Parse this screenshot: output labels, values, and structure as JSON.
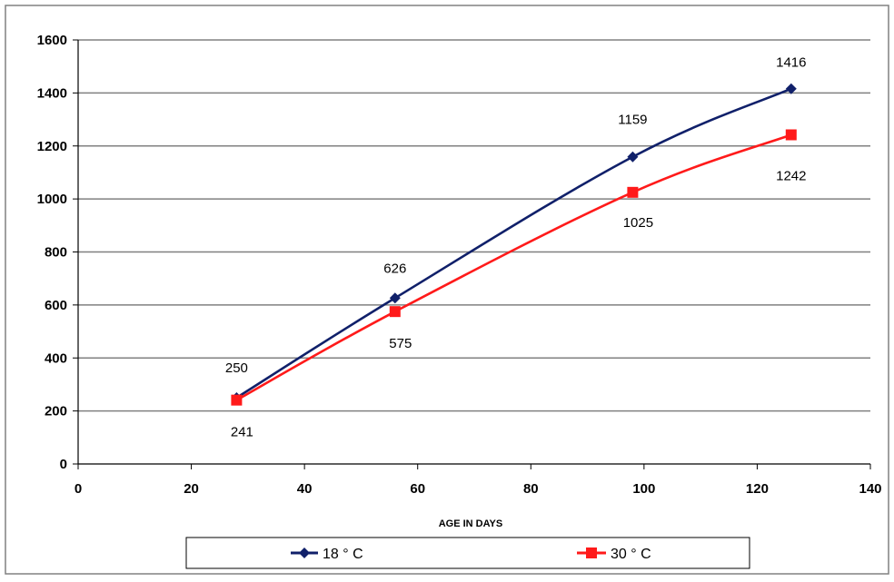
{
  "chart_data": {
    "type": "line",
    "xlabel": "AGE IN DAYS",
    "ylabel": "",
    "xlim": [
      0,
      140
    ],
    "ylim": [
      0,
      1600
    ],
    "x_ticks": [
      "0",
      "20",
      "40",
      "60",
      "80",
      "100",
      "120",
      "140"
    ],
    "y_ticks": [
      "0",
      "200",
      "400",
      "600",
      "800",
      "1000",
      "1200",
      "1400",
      "1600"
    ],
    "grid": "horizontal",
    "legend_position": "bottom",
    "series": [
      {
        "name": "18 ° C",
        "color": "#10206a",
        "marker": "diamond",
        "points": [
          {
            "x": 28,
            "y": 250,
            "label": "250"
          },
          {
            "x": 56,
            "y": 626,
            "label": "626"
          },
          {
            "x": 98,
            "y": 1159,
            "label": "1159"
          },
          {
            "x": 126,
            "y": 1416,
            "label": "1416"
          }
        ]
      },
      {
        "name": "30 ° C",
        "color": "#ff1a1a",
        "marker": "square",
        "points": [
          {
            "x": 28,
            "y": 241,
            "label": "241"
          },
          {
            "x": 56,
            "y": 575,
            "label": "575"
          },
          {
            "x": 98,
            "y": 1025,
            "label": "1025"
          },
          {
            "x": 126,
            "y": 1242,
            "label": "1242"
          }
        ]
      }
    ]
  }
}
